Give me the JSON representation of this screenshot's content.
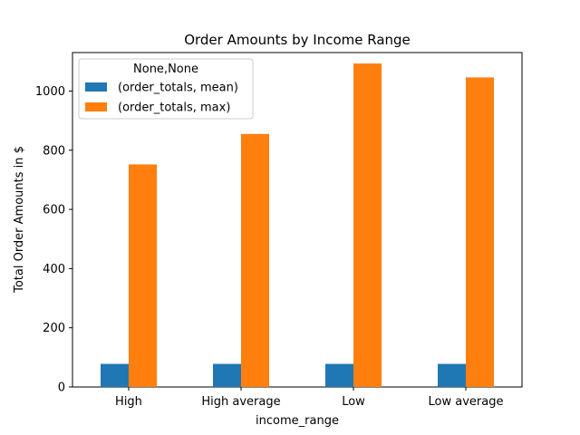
{
  "chart_data": {
    "type": "bar",
    "title": "Order Amounts by Income Range",
    "xlabel": "income_range",
    "ylabel": "Total Order Amounts in $",
    "categories": [
      "High",
      "High average",
      "Low",
      "Low average"
    ],
    "ylim": [
      0,
      1130
    ],
    "yticks": [
      0,
      200,
      400,
      600,
      800,
      1000
    ],
    "series": [
      {
        "name": "(order_totals, mean)",
        "color": "#1f77b4",
        "values": [
          78,
          78,
          78,
          78
        ]
      },
      {
        "name": "(order_totals, max)",
        "color": "#ff7f0e",
        "values": [
          752,
          855,
          1093,
          1046
        ]
      }
    ],
    "legend": {
      "title": "None,None",
      "placement": "top-left"
    },
    "grid": false
  }
}
